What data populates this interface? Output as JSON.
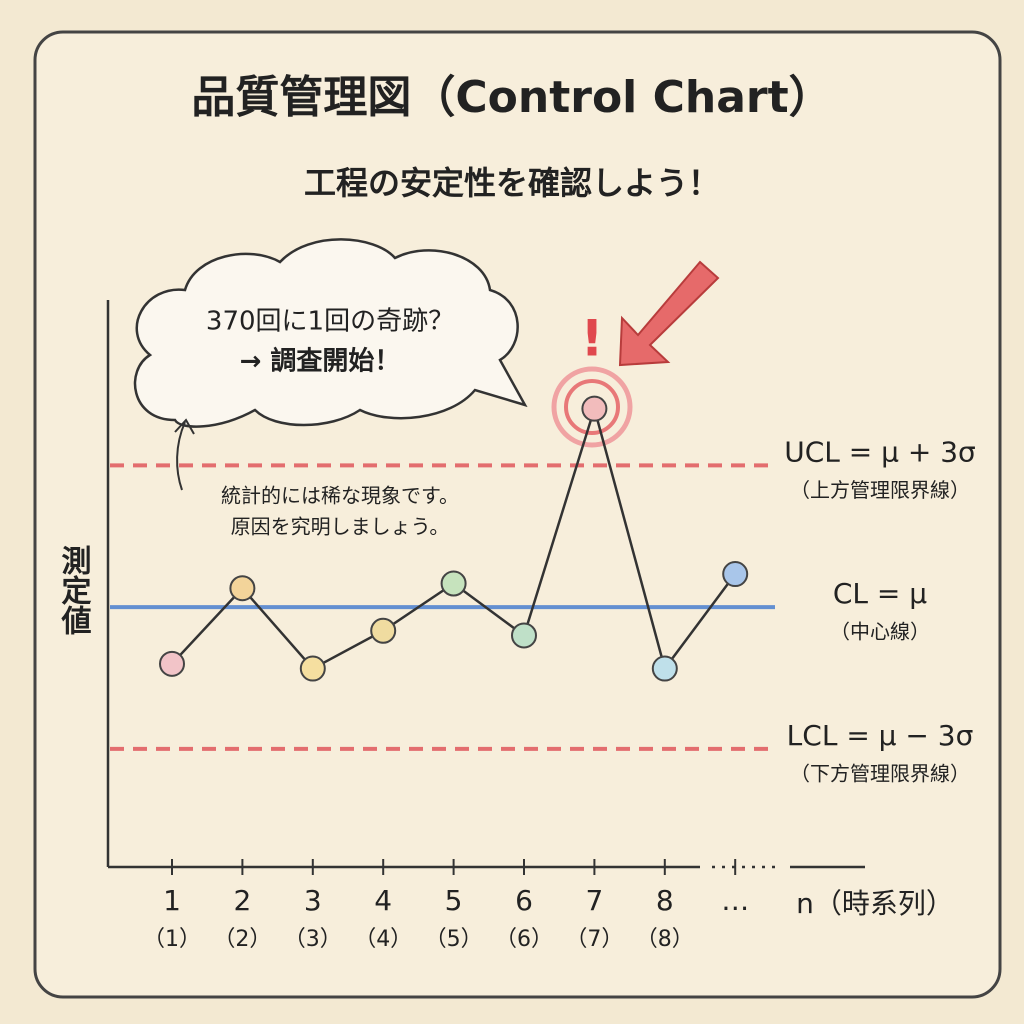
{
  "chart_data": {
    "type": "line",
    "title": "品質管理図（Control Chart）",
    "subtitle": "工程の安定性を確認しよう！",
    "ylabel": "測定値",
    "xlabel": "n（時系列）",
    "categories": [
      "1",
      "2",
      "3",
      "4",
      "5",
      "6",
      "7",
      "8",
      "…"
    ],
    "category_sublabels": [
      "（1）",
      "（2）",
      "（3）",
      "（4）",
      "（5）",
      "（6）",
      "（7）",
      "（8）"
    ],
    "series": [
      {
        "color": "#333333",
        "values": [
          -1.2,
          0.4,
          -1.3,
          -0.5,
          0.5,
          -0.6,
          4.2,
          -1.3,
          0.7
        ]
      }
    ],
    "point_colors": [
      "#f2c4c8",
      "#f3d49a",
      "#f5dfa0",
      "#f0dca0",
      "#c6e3bd",
      "#bfe0c8",
      "#f2bcbc",
      "#bfe0ea",
      "#a9c6ea"
    ],
    "ylim": [
      -5.5,
      6.5
    ],
    "control_lines": [
      {
        "value": 3,
        "label": "UCL = μ + 3σ",
        "sublabel": "（上方管理限界線）",
        "color": "#e0575c",
        "style": "dashed"
      },
      {
        "value": 0,
        "label": "CL = μ",
        "sublabel": "（中心線）",
        "color": "#4a7fd0",
        "style": "solid"
      },
      {
        "value": -3,
        "label": "LCL = μ − 3σ",
        "sublabel": "（下方管理限界線）",
        "color": "#e0575c",
        "style": "dashed"
      }
    ],
    "annotations": {
      "bubble": [
        "370回に1回の奇跡？",
        "→ 調査開始！"
      ],
      "note": [
        "統計的には稀な現象です。",
        "原因を究明しましょう。"
      ],
      "alert": "!"
    }
  }
}
